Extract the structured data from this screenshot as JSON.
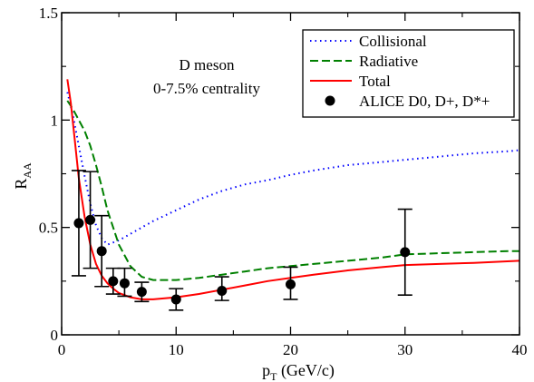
{
  "chart_data": {
    "type": "line",
    "xlabel_main": "p",
    "xlabel_sub": "T",
    "xlabel_unit": " (GeV/c)",
    "ylabel_main": "R",
    "ylabel_sub": "AA",
    "xlim": [
      0,
      40
    ],
    "ylim": [
      0,
      1.5
    ],
    "x_ticks": [
      0,
      10,
      20,
      30,
      40
    ],
    "x_tick_labels": [
      "0",
      "10",
      "20",
      "30",
      "40"
    ],
    "y_ticks": [
      0,
      0.5,
      1,
      1.5
    ],
    "y_tick_labels": [
      "0",
      "0.5",
      "1",
      "1.5"
    ],
    "grid": false,
    "legend_position": "top-right",
    "annotation_lines": [
      "D meson",
      "0-7.5% centrality"
    ],
    "series": [
      {
        "name": "Collisional",
        "style": "dotted",
        "color": "#0000ff",
        "x": [
          0.5,
          1,
          1.5,
          2,
          2.5,
          3,
          3.5,
          4,
          5,
          6,
          7,
          8,
          10,
          12,
          14,
          16,
          18,
          20,
          22,
          25,
          28,
          30,
          33,
          36,
          39,
          40
        ],
        "y": [
          1.13,
          1.02,
          0.88,
          0.74,
          0.61,
          0.51,
          0.45,
          0.42,
          0.44,
          0.47,
          0.5,
          0.53,
          0.58,
          0.63,
          0.67,
          0.7,
          0.72,
          0.745,
          0.765,
          0.79,
          0.805,
          0.815,
          0.83,
          0.845,
          0.855,
          0.86
        ]
      },
      {
        "name": "Radiative",
        "style": "dashed",
        "color": "#008000",
        "x": [
          0.5,
          1,
          1.5,
          2,
          2.5,
          3,
          3.5,
          4,
          5,
          6,
          7,
          8,
          10,
          12,
          14,
          16,
          18,
          20,
          22,
          25,
          28,
          30,
          33,
          36,
          39,
          40
        ],
        "y": [
          1.09,
          1.05,
          1.0,
          0.95,
          0.88,
          0.79,
          0.69,
          0.58,
          0.42,
          0.32,
          0.27,
          0.255,
          0.255,
          0.265,
          0.28,
          0.295,
          0.31,
          0.32,
          0.33,
          0.345,
          0.36,
          0.375,
          0.38,
          0.385,
          0.39,
          0.39
        ]
      },
      {
        "name": "Total",
        "style": "solid",
        "color": "#ff0000",
        "x": [
          0.5,
          0.8,
          1.1,
          1.5,
          2,
          2.5,
          3,
          3.5,
          4,
          4.5,
          5,
          6,
          7,
          8,
          10,
          12,
          14,
          16,
          18,
          20,
          22,
          25,
          28,
          30,
          33,
          36,
          40
        ],
        "y": [
          1.19,
          1.08,
          0.93,
          0.73,
          0.55,
          0.42,
          0.33,
          0.275,
          0.24,
          0.215,
          0.195,
          0.175,
          0.165,
          0.165,
          0.175,
          0.19,
          0.21,
          0.23,
          0.25,
          0.265,
          0.28,
          0.3,
          0.315,
          0.325,
          0.33,
          0.335,
          0.345
        ]
      },
      {
        "name": "ALICE D0, D+, D*+",
        "style": "points",
        "color": "#000000",
        "x": [
          1.5,
          2.5,
          3.5,
          4.5,
          5.5,
          7,
          10,
          14,
          20,
          30
        ],
        "y": [
          0.52,
          0.535,
          0.39,
          0.25,
          0.24,
          0.2,
          0.165,
          0.205,
          0.235,
          0.385
        ],
        "yerr_up": [
          0.245,
          0.225,
          0.165,
          0.06,
          0.07,
          0.045,
          0.05,
          0.065,
          0.08,
          0.2
        ],
        "yerr_down": [
          0.245,
          0.225,
          0.165,
          0.06,
          0.06,
          0.045,
          0.05,
          0.045,
          0.07,
          0.2
        ],
        "xerr": 0.5
      }
    ]
  }
}
